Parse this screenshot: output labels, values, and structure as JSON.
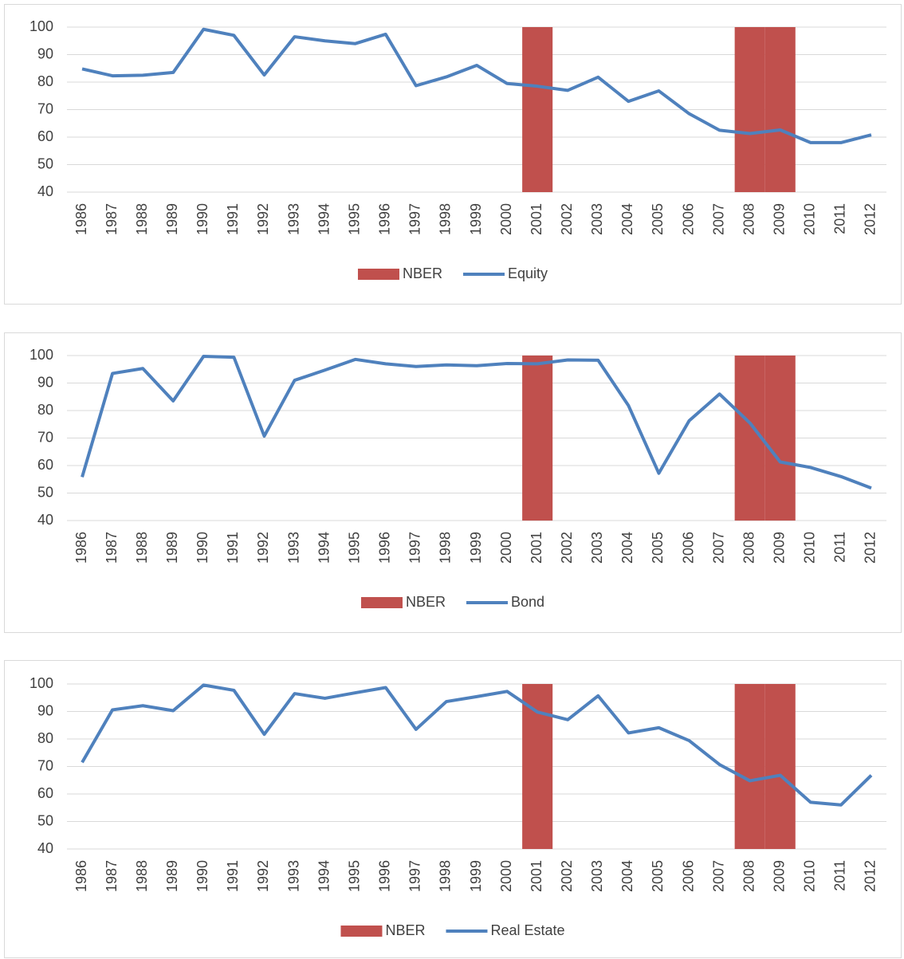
{
  "chart_data": [
    {
      "type": "combo",
      "categories": [
        "1986",
        "1987",
        "1988",
        "1989",
        "1990",
        "1991",
        "1992",
        "1993",
        "1994",
        "1995",
        "1996",
        "1997",
        "1998",
        "1999",
        "2000",
        "2001",
        "2002",
        "2003",
        "2004",
        "2005",
        "2006",
        "2007",
        "2008",
        "2009",
        "2010",
        "2011",
        "2012"
      ],
      "series": [
        {
          "name": "NBER",
          "type": "bar",
          "color": "#c0504d",
          "values": [
            null,
            null,
            null,
            null,
            null,
            null,
            null,
            null,
            null,
            null,
            null,
            null,
            null,
            null,
            null,
            100,
            null,
            null,
            null,
            null,
            null,
            null,
            100,
            100,
            null,
            null,
            null
          ]
        },
        {
          "name": "Equity",
          "type": "line",
          "color": "#4f81bd",
          "values": [
            84.8,
            82.3,
            82.5,
            83.5,
            99.2,
            97,
            82.6,
            96.5,
            95,
            94,
            97.4,
            78.7,
            81.9,
            86.1,
            79.5,
            78.5,
            77,
            81.8,
            73,
            76.8,
            68.5,
            62.5,
            61.3,
            62.6,
            58,
            58,
            60.8
          ]
        }
      ],
      "ylim": [
        40,
        100
      ],
      "yticks": [
        40,
        50,
        60,
        70,
        80,
        90,
        100
      ],
      "grid": true,
      "legend": "bottom"
    },
    {
      "type": "combo",
      "categories": [
        "1986",
        "1987",
        "1988",
        "1989",
        "1990",
        "1991",
        "1992",
        "1993",
        "1994",
        "1995",
        "1996",
        "1997",
        "1998",
        "1999",
        "2000",
        "2001",
        "2002",
        "2003",
        "2004",
        "2005",
        "2006",
        "2007",
        "2008",
        "2009",
        "2010",
        "2011",
        "2012"
      ],
      "series": [
        {
          "name": "NBER",
          "type": "bar",
          "color": "#c0504d",
          "values": [
            null,
            null,
            null,
            null,
            null,
            null,
            null,
            null,
            null,
            null,
            null,
            null,
            null,
            null,
            null,
            100,
            null,
            null,
            null,
            null,
            null,
            null,
            100,
            100,
            null,
            null,
            null
          ]
        },
        {
          "name": "Bond",
          "type": "line",
          "color": "#4f81bd",
          "values": [
            55.8,
            93.5,
            95.3,
            83.5,
            99.7,
            99.4,
            70.7,
            91,
            94.7,
            98.6,
            97,
            96,
            96.6,
            96.3,
            97.1,
            97,
            98.4,
            98.3,
            81.8,
            57.2,
            76.3,
            86,
            75.5,
            61.3,
            59.3,
            56,
            51.8
          ]
        }
      ],
      "ylim": [
        40,
        100
      ],
      "yticks": [
        40,
        50,
        60,
        70,
        80,
        90,
        100
      ],
      "grid": true,
      "legend": "bottom"
    },
    {
      "type": "combo",
      "categories": [
        "1986",
        "1987",
        "1988",
        "1989",
        "1990",
        "1991",
        "1992",
        "1993",
        "1994",
        "1995",
        "1996",
        "1997",
        "1998",
        "1999",
        "2000",
        "2001",
        "2002",
        "2003",
        "2004",
        "2005",
        "2006",
        "2007",
        "2008",
        "2009",
        "2010",
        "2011",
        "2012"
      ],
      "series": [
        {
          "name": "NBER",
          "type": "bar",
          "color": "#c0504d",
          "values": [
            null,
            null,
            null,
            null,
            null,
            null,
            null,
            null,
            null,
            null,
            null,
            null,
            null,
            null,
            null,
            100,
            null,
            null,
            null,
            null,
            null,
            null,
            100,
            100,
            null,
            null,
            null
          ]
        },
        {
          "name": "Real Estate",
          "type": "line",
          "color": "#4f81bd",
          "values": [
            71.5,
            90.6,
            92.1,
            90.3,
            99.6,
            97.7,
            81.7,
            96.5,
            94.8,
            96.8,
            98.7,
            83.5,
            93.6,
            95.4,
            97.3,
            89.8,
            87,
            95.7,
            82.2,
            84.1,
            79.4,
            70.7,
            64.8,
            66.8,
            57,
            56,
            66.8
          ]
        }
      ],
      "ylim": [
        40,
        100
      ],
      "yticks": [
        40,
        50,
        60,
        70,
        80,
        90,
        100
      ],
      "grid": true,
      "legend": "bottom"
    }
  ]
}
